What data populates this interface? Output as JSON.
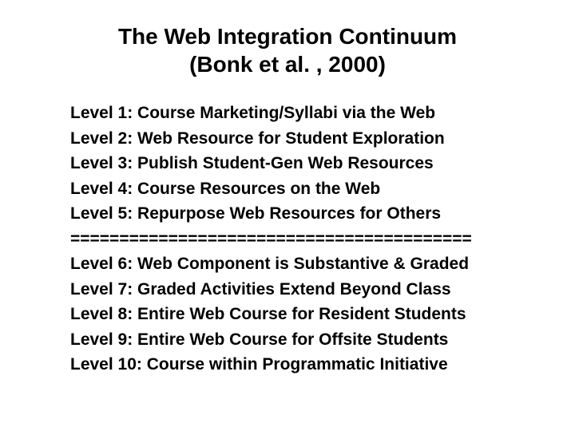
{
  "title_line1": "The Web Integration Continuum",
  "title_line2": "(Bonk et al. , 2000)",
  "lines": [
    "Level 1: Course Marketing/Syllabi via the Web",
    "Level 2: Web Resource for Student Exploration",
    "Level 3: Publish Student-Gen Web Resources",
    "Level 4: Course Resources on the Web",
    "Level 5: Repurpose Web Resources for Others",
    "=========================================",
    "Level 6: Web Component is Substantive & Graded",
    "Level 7: Graded Activities Extend Beyond Class",
    "Level 8: Entire Web Course for Resident Students",
    "Level 9: Entire Web Course for Offsite Students",
    "Level 10: Course within Programmatic Initiative"
  ],
  "colors": {
    "background": "#ffffff",
    "text": "#000000"
  },
  "typography": {
    "title_fontsize": 28,
    "body_fontsize": 21,
    "font_weight": "bold",
    "font_family": "Arial"
  }
}
